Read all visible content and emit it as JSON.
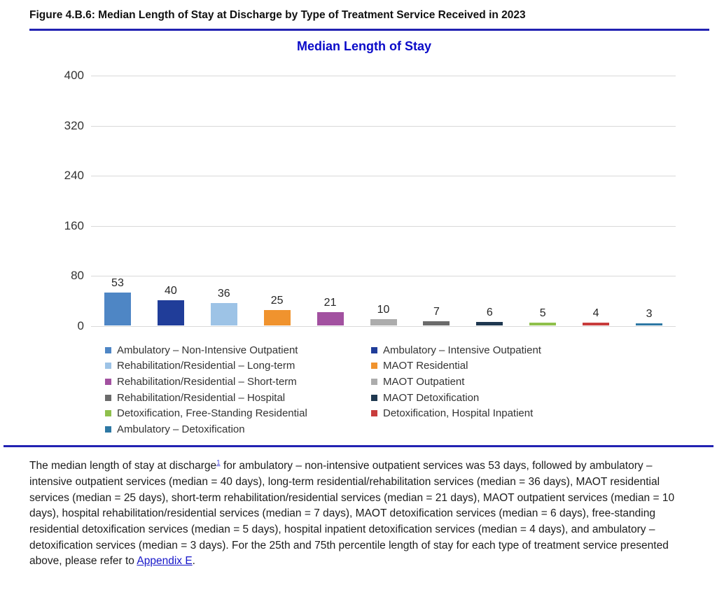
{
  "figure": {
    "title": "Figure 4.B.6: Median Length of Stay at Discharge by Type of Treatment Service Received in 2023"
  },
  "chart_data": {
    "type": "bar",
    "title": "Median Length of Stay",
    "categories": [
      "Ambulatory – Non-Intensive Outpatient",
      "Ambulatory – Intensive Outpatient",
      "Rehabilitation/Residential – Long-term",
      "MAOT Residential",
      "Rehabilitation/Residential – Short-term",
      "MAOT Outpatient",
      "Rehabilitation/Residential – Hospital",
      "MAOT Detoxification",
      "Detoxification, Free-Standing Residential",
      "Detoxification, Hospital Inpatient",
      "Ambulatory – Detoxification"
    ],
    "values": [
      53,
      40,
      36,
      25,
      21,
      10,
      7,
      6,
      5,
      4,
      3
    ],
    "colors": [
      "#4e86c5",
      "#203d99",
      "#9dc3e6",
      "#f0932e",
      "#a251a0",
      "#acacac",
      "#6b6b6b",
      "#1f3850",
      "#8fc04c",
      "#c83c3c",
      "#2e78a4"
    ],
    "xlabel": "",
    "ylabel": "",
    "ylim": [
      0,
      400
    ],
    "yticks": [
      0,
      80,
      160,
      240,
      320,
      400
    ],
    "grid": true,
    "legend_position": "bottom, two columns",
    "data_labels": true
  },
  "legend": {
    "left": [
      {
        "label": "Ambulatory – Non-Intensive Outpatient",
        "color": "#4e86c5"
      },
      {
        "label": "Rehabilitation/Residential – Long-term",
        "color": "#9dc3e6"
      },
      {
        "label": "Rehabilitation/Residential – Short-term",
        "color": "#a251a0"
      },
      {
        "label": "Rehabilitation/Residential – Hospital",
        "color": "#6b6b6b"
      },
      {
        "label": "Detoxification, Free-Standing Residential",
        "color": "#8fc04c"
      },
      {
        "label": "Ambulatory – Detoxification",
        "color": "#2e78a4"
      }
    ],
    "right": [
      {
        "label": "Ambulatory – Intensive Outpatient",
        "color": "#203d99"
      },
      {
        "label": "MAOT Residential",
        "color": "#f0932e"
      },
      {
        "label": "MAOT Outpatient",
        "color": "#acacac"
      },
      {
        "label": "MAOT Detoxification",
        "color": "#1f3850"
      },
      {
        "label": "Detoxification, Hospital Inpatient",
        "color": "#c83c3c"
      }
    ]
  },
  "caption": {
    "text_before_sup": "The median length of stay at discharge",
    "superscript": "1",
    "text_after_sup": " for ambulatory – non-intensive outpatient services was 53 days, followed by ambulatory – intensive outpatient services (median = 40 days), long-term residential/rehabilitation services (median = 36 days), MAOT residential services (median = 25 days), short-term rehabilitation/residential services (median = 21 days), MAOT outpatient services (median = 10 days), hospital rehabilitation/residential services (median = 7 days), MAOT detoxification services (median = 6 days), free-standing residential detoxification services (median = 5 days), hospital inpatient detoxification services (median = 4 days), and ambulatory – detoxification services (median = 3 days). For the 25th and 75th percentile length of stay for each type of treatment service presented above, please refer to ",
    "link_text": "Appendix E",
    "text_after_link": "."
  },
  "colors": {
    "divider_blue": "#2222b2",
    "chart_title_blue": "#0a0ac8",
    "gridline_gray": "#d9d9d9",
    "link_blue": "#1515c8"
  }
}
